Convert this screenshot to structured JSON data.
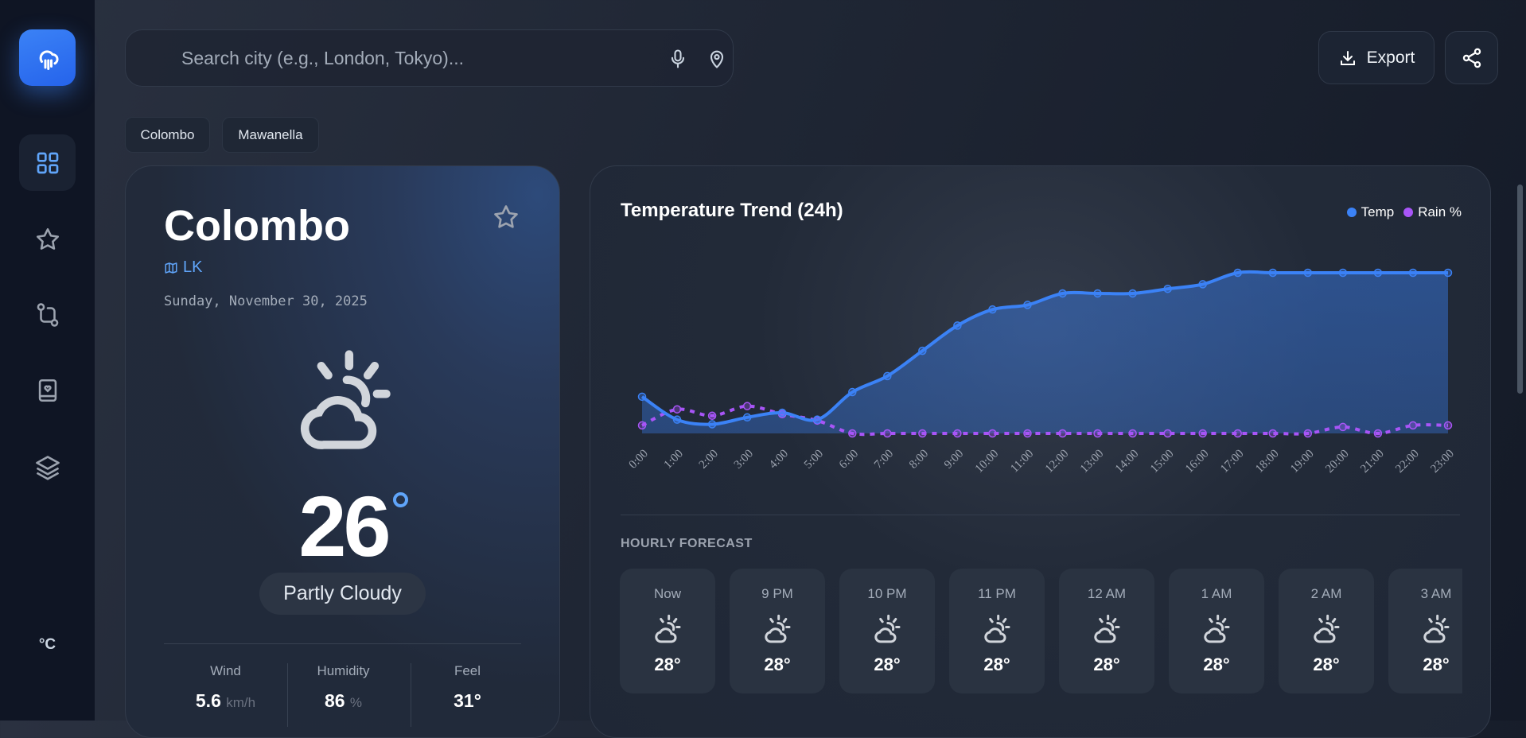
{
  "sidebar": {
    "items": [
      {
        "name": "dashboard",
        "icon": "grid-icon",
        "active": true
      },
      {
        "name": "favorites",
        "icon": "star-icon"
      },
      {
        "name": "routes",
        "icon": "route-icon"
      },
      {
        "name": "saved",
        "icon": "book-heart-icon"
      },
      {
        "name": "layers",
        "icon": "layers-icon"
      }
    ],
    "unit_toggle": "°C",
    "logo_icon": "cloud-rain-icon"
  },
  "search": {
    "placeholder": "Search city (e.g., London, Tokyo)...",
    "value": ""
  },
  "toolbar": {
    "export_label": "Export",
    "share_icon": "share-icon"
  },
  "recent": [
    "Colombo",
    "Mawanella"
  ],
  "current": {
    "city": "Colombo",
    "country": "LK",
    "date": "Sunday, November 30, 2025",
    "temp": "26",
    "condition": "Partly Cloudy",
    "stats": [
      {
        "label": "Wind",
        "value": "5.6",
        "unit": "km/h"
      },
      {
        "label": "Humidity",
        "value": "86",
        "unit": "%"
      },
      {
        "label": "Feel",
        "value": "31°",
        "unit": ""
      }
    ]
  },
  "colors": {
    "accent": "#3b82f6",
    "rain": "#a855f7",
    "background": "#1f2634"
  },
  "chart_data": {
    "type": "line",
    "title": "Temperature Trend (24h)",
    "legend_placement": "top-right",
    "grid": false,
    "categories": [
      "0:00",
      "1:00",
      "2:00",
      "3:00",
      "4:00",
      "5:00",
      "6:00",
      "7:00",
      "8:00",
      "9:00",
      "10:00",
      "11:00",
      "12:00",
      "13:00",
      "14:00",
      "15:00",
      "16:00",
      "17:00",
      "18:00",
      "19:00",
      "20:00",
      "21:00",
      "22:00",
      "23:00"
    ],
    "series": [
      {
        "name": "Temp",
        "color": "#3b82f6",
        "style": "solid-area",
        "values": [
          25.6,
          24.6,
          24.4,
          24.7,
          24.9,
          24.6,
          25.8,
          26.5,
          27.6,
          28.7,
          29.4,
          29.6,
          30.1,
          30.1,
          30.1,
          30.3,
          30.5,
          31.0,
          31.0,
          31.0,
          31.0,
          31.0,
          31.0,
          31.0
        ]
      },
      {
        "name": "Rain %",
        "color": "#a855f7",
        "style": "dashed",
        "values": [
          5,
          15,
          11,
          17,
          12,
          8,
          0,
          0,
          0,
          0,
          0,
          0,
          0,
          0,
          0,
          0,
          0,
          0,
          0,
          0,
          4,
          0,
          5,
          5
        ]
      }
    ]
  },
  "hourly": {
    "title": "HOURLY FORECAST",
    "items": [
      {
        "time": "Now",
        "temp": "28°"
      },
      {
        "time": "9 PM",
        "temp": "28°"
      },
      {
        "time": "10 PM",
        "temp": "28°"
      },
      {
        "time": "11 PM",
        "temp": "28°"
      },
      {
        "time": "12 AM",
        "temp": "28°"
      },
      {
        "time": "1 AM",
        "temp": "28°"
      },
      {
        "time": "2 AM",
        "temp": "28°"
      },
      {
        "time": "3 AM",
        "temp": "28°"
      }
    ]
  }
}
